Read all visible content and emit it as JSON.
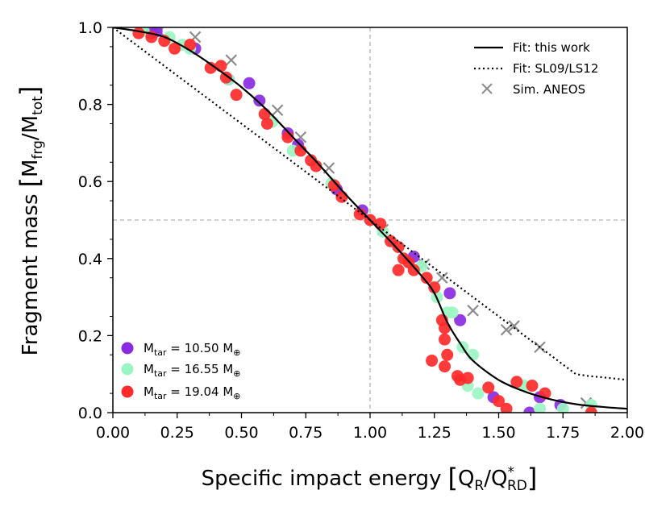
{
  "chart_data": {
    "type": "scatter",
    "title": "",
    "xlabel": {
      "main": "Specific impact energy",
      "q": "Q",
      "q_sub": "R",
      "slash": "/",
      "qstar": "Q",
      "qstar_sup": "*",
      "qstar_sub": "RD"
    },
    "ylabel": {
      "main": "Fragment mass",
      "m1": "M",
      "m1_sub": "frg",
      "slash": "/",
      "m2": "M",
      "m2_sub": "tot"
    },
    "xlim": [
      0,
      2
    ],
    "ylim": [
      0,
      1
    ],
    "xticks": [
      "0.00",
      "0.25",
      "0.50",
      "0.75",
      "1.00",
      "1.25",
      "1.50",
      "1.75",
      "2.00"
    ],
    "yticks": [
      "0.0",
      "0.2",
      "0.4",
      "0.6",
      "0.8",
      "1.0"
    ],
    "reference_lines": {
      "x": 1.0,
      "y": 0.5
    },
    "legend_top": [
      {
        "label": "Fit: this work",
        "style": "solid"
      },
      {
        "label": "Fit: SL09/LS12",
        "style": "dotted"
      },
      {
        "label": "Sim. ANEOS",
        "style": "cross"
      }
    ],
    "legend_mass": [
      {
        "prefix": "M",
        "sub": "tar",
        "value": " = 10.50 M",
        "earth": "⊕",
        "color": "#8a2be2"
      },
      {
        "prefix": "M",
        "sub": "tar",
        "value": " = 16.55 M",
        "earth": "⊕",
        "color": "#9af5c3"
      },
      {
        "prefix": "M",
        "sub": "tar",
        "value": " = 19.04 M",
        "earth": "⊕",
        "color": "#ff2a2a"
      }
    ],
    "fit_this_work": [
      [
        0,
        1.0
      ],
      [
        0.1,
        0.99
      ],
      [
        0.2,
        0.975
      ],
      [
        0.3,
        0.94
      ],
      [
        0.4,
        0.895
      ],
      [
        0.5,
        0.845
      ],
      [
        0.6,
        0.785
      ],
      [
        0.7,
        0.715
      ],
      [
        0.8,
        0.645
      ],
      [
        0.9,
        0.57
      ],
      [
        1.0,
        0.5
      ],
      [
        1.1,
        0.43
      ],
      [
        1.2,
        0.355
      ],
      [
        1.25,
        0.31
      ],
      [
        1.3,
        0.235
      ],
      [
        1.35,
        0.18
      ],
      [
        1.4,
        0.135
      ],
      [
        1.5,
        0.085
      ],
      [
        1.6,
        0.055
      ],
      [
        1.7,
        0.035
      ],
      [
        1.8,
        0.022
      ],
      [
        1.9,
        0.015
      ],
      [
        2.0,
        0.01
      ]
    ],
    "fit_sl09": [
      [
        0,
        1.0
      ],
      [
        0.2,
        0.9
      ],
      [
        0.4,
        0.8
      ],
      [
        0.6,
        0.7
      ],
      [
        0.8,
        0.6
      ],
      [
        1.0,
        0.5
      ],
      [
        1.2,
        0.4
      ],
      [
        1.4,
        0.3
      ],
      [
        1.6,
        0.2
      ],
      [
        1.75,
        0.125
      ],
      [
        1.8,
        0.1
      ],
      [
        1.85,
        0.095
      ],
      [
        1.9,
        0.092
      ],
      [
        2.0,
        0.085
      ]
    ],
    "series": [
      {
        "name": "Sim. ANEOS",
        "marker": "cross",
        "color": "#8c8c8c",
        "points": [
          [
            0.18,
            0.99
          ],
          [
            0.32,
            0.975
          ],
          [
            0.46,
            0.915
          ],
          [
            0.64,
            0.785
          ],
          [
            0.73,
            0.715
          ],
          [
            0.84,
            0.635
          ],
          [
            1.05,
            0.475
          ],
          [
            1.21,
            0.385
          ],
          [
            1.28,
            0.35
          ],
          [
            1.4,
            0.265
          ],
          [
            1.53,
            0.215
          ],
          [
            1.56,
            0.225
          ],
          [
            1.66,
            0.17
          ],
          [
            1.84,
            0.025
          ]
        ]
      },
      {
        "name": "M_tar = 10.50 M_earth",
        "marker": "circle",
        "color": "#8a2be2",
        "points": [
          [
            0.15,
            0.985
          ],
          [
            0.17,
            0.99
          ],
          [
            0.32,
            0.945
          ],
          [
            0.45,
            0.865
          ],
          [
            0.53,
            0.855
          ],
          [
            0.57,
            0.81
          ],
          [
            0.68,
            0.725
          ],
          [
            0.72,
            0.695
          ],
          [
            0.87,
            0.58
          ],
          [
            0.97,
            0.525
          ],
          [
            1.17,
            0.405
          ],
          [
            1.31,
            0.31
          ],
          [
            1.35,
            0.24
          ],
          [
            1.48,
            0.04
          ],
          [
            1.62,
            0.0
          ],
          [
            1.66,
            0.04
          ],
          [
            1.74,
            0.02
          ]
        ]
      },
      {
        "name": "M_tar = 16.55 M_earth",
        "marker": "circle",
        "color": "#9af5c3",
        "points": [
          [
            0.12,
            0.99
          ],
          [
            0.22,
            0.975
          ],
          [
            0.27,
            0.955
          ],
          [
            0.3,
            0.945
          ],
          [
            0.45,
            0.865
          ],
          [
            0.62,
            0.755
          ],
          [
            0.7,
            0.68
          ],
          [
            0.85,
            0.595
          ],
          [
            1.05,
            0.47
          ],
          [
            1.2,
            0.38
          ],
          [
            1.26,
            0.3
          ],
          [
            1.3,
            0.26
          ],
          [
            1.32,
            0.26
          ],
          [
            1.36,
            0.17
          ],
          [
            1.4,
            0.15
          ],
          [
            1.38,
            0.07
          ],
          [
            1.42,
            0.05
          ],
          [
            1.6,
            0.07
          ],
          [
            1.66,
            0.01
          ],
          [
            1.75,
            0.01
          ],
          [
            1.86,
            0.02
          ]
        ]
      },
      {
        "name": "M_tar = 19.04 M_earth",
        "marker": "circle",
        "color": "#ff2a2a",
        "points": [
          [
            0.1,
            0.985
          ],
          [
            0.15,
            0.975
          ],
          [
            0.2,
            0.965
          ],
          [
            0.24,
            0.945
          ],
          [
            0.3,
            0.955
          ],
          [
            0.38,
            0.895
          ],
          [
            0.42,
            0.9
          ],
          [
            0.44,
            0.87
          ],
          [
            0.48,
            0.825
          ],
          [
            0.59,
            0.775
          ],
          [
            0.6,
            0.75
          ],
          [
            0.68,
            0.715
          ],
          [
            0.73,
            0.68
          ],
          [
            0.77,
            0.655
          ],
          [
            0.79,
            0.64
          ],
          [
            0.86,
            0.59
          ],
          [
            0.89,
            0.56
          ],
          [
            0.96,
            0.515
          ],
          [
            1.0,
            0.5
          ],
          [
            1.04,
            0.49
          ],
          [
            1.08,
            0.445
          ],
          [
            1.11,
            0.43
          ],
          [
            1.13,
            0.4
          ],
          [
            1.15,
            0.39
          ],
          [
            1.17,
            0.37
          ],
          [
            1.22,
            0.35
          ],
          [
            1.11,
            0.37
          ],
          [
            1.25,
            0.325
          ],
          [
            1.29,
            0.22
          ],
          [
            1.29,
            0.19
          ],
          [
            1.3,
            0.15
          ],
          [
            1.28,
            0.24
          ],
          [
            1.24,
            0.135
          ],
          [
            1.29,
            0.12
          ],
          [
            1.34,
            0.095
          ],
          [
            1.38,
            0.09
          ],
          [
            1.35,
            0.085
          ],
          [
            1.46,
            0.065
          ],
          [
            1.53,
            0.01
          ],
          [
            1.5,
            0.03
          ],
          [
            1.57,
            0.08
          ],
          [
            1.63,
            0.07
          ],
          [
            1.68,
            0.05
          ],
          [
            1.86,
            0.0
          ]
        ]
      }
    ]
  }
}
